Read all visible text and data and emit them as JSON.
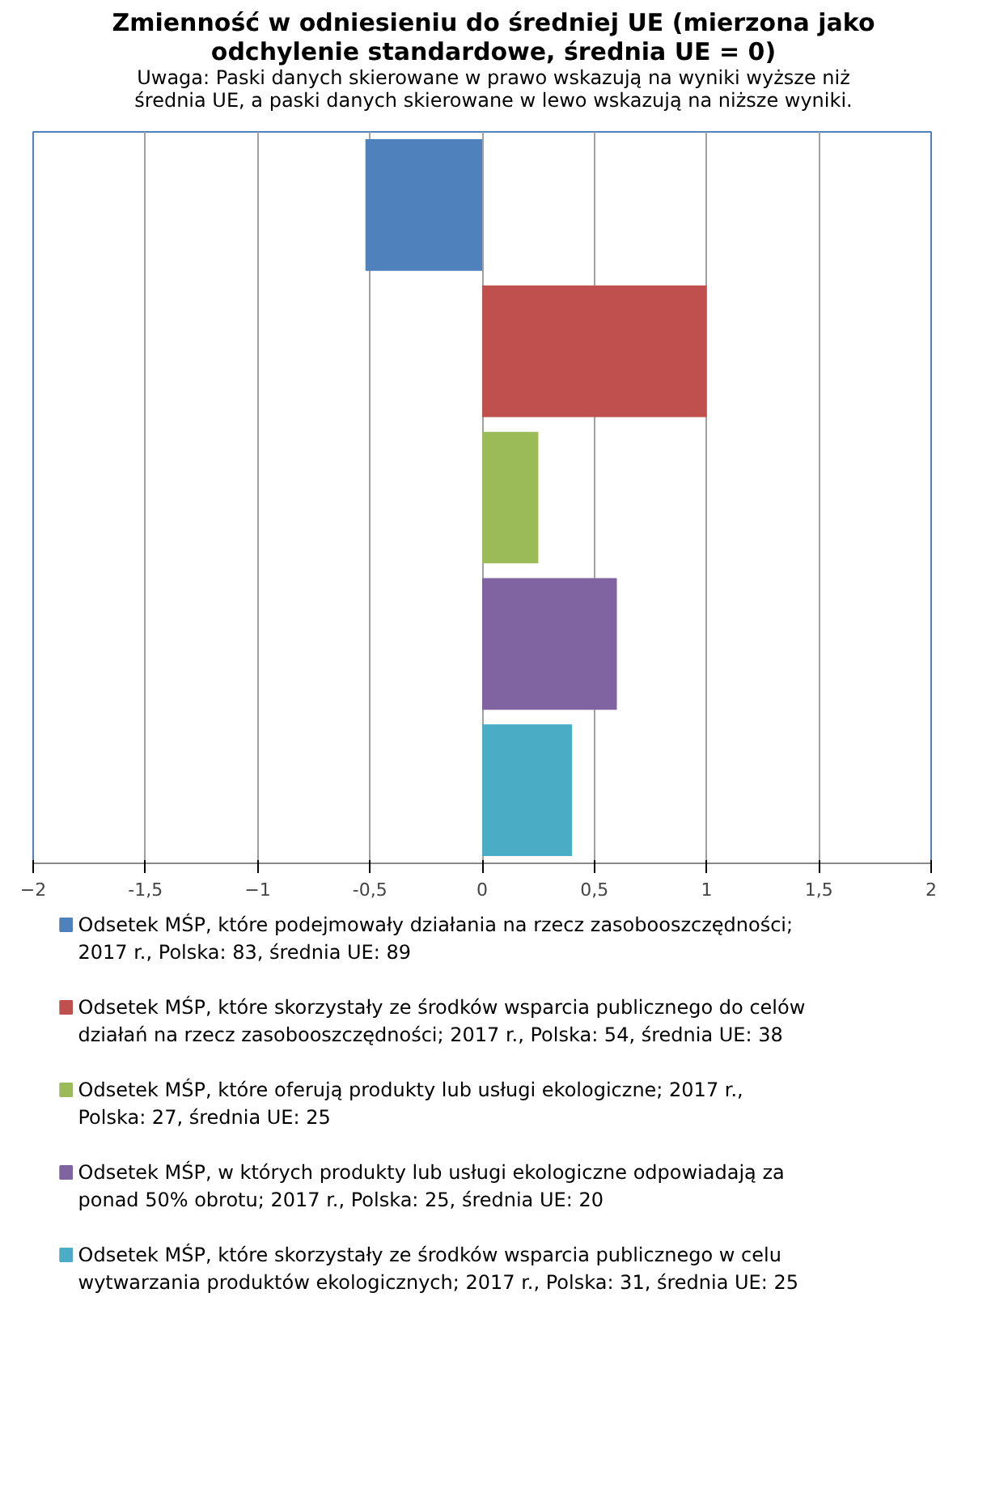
{
  "chart_data": {
    "type": "bar",
    "orientation": "horizontal",
    "title": "Zmienność w odniesieniu do średniej UE (mierzona jako odchylenie standardowe, średnia UE = 0)",
    "subtitle": "Uwaga: Paski danych skierowane w prawo wskazują na wyniki wyższe niż średnia UE, a paski danych skierowane w lewo wskazują na niższe wyniki.",
    "categories": [
      null,
      null,
      null,
      null,
      null
    ],
    "series": [
      {
        "name": "Odsetek MŚP, które podejmowały działania na rzecz zasobooszczędności; 2017 r., Polska: 83, średnia UE: 89",
        "color": "#4f81bd",
        "values": [
          -0.52,
          null,
          null,
          null,
          null
        ]
      },
      {
        "name": "Odsetek MŚP, które skorzystały ze środków wsparcia publicznego do celów działań na rzecz zasobooszczędności; 2017 r., Polska: 54, średnia UE: 38",
        "color": "#c0504d",
        "values": [
          null,
          1.0,
          null,
          null,
          null
        ]
      },
      {
        "name": "Odsetek MŚP, które oferują produkty lub usługi ekologiczne; 2017 r., Polska: 27, średnia UE: 25",
        "color": "#9bbb59",
        "values": [
          null,
          null,
          0.25,
          null,
          null
        ]
      },
      {
        "name": "Odsetek MŚP, w których produkty lub usługi ekologiczne odpowiadają za ponad 50% obrotu; 2017 r., Polska: 25, średnia UE: 20",
        "color": "#8064a2",
        "values": [
          null,
          null,
          null,
          0.6,
          null
        ]
      },
      {
        "name": "Odsetek MŚP, które skorzystały ze środków wsparcia publicznego w celu wytwarzania produktów ekologicznych; 2017 r., Polska: 31, średnia UE: 25",
        "color": "#4bacc6",
        "values": [
          null,
          null,
          null,
          null,
          0.4
        ]
      }
    ],
    "xlim": [
      -2,
      2
    ],
    "xticks": [
      -2,
      {
        "value": -1.5,
        "label": "-1,5"
      },
      -1,
      {
        "value": -0.5,
        "label": "-0,5"
      },
      0,
      {
        "value": 0.5,
        "label": "0,5"
      },
      1,
      {
        "value": 1.5,
        "label": "1,5"
      },
      2
    ],
    "tick_labels": "x",
    "grid": "x",
    "legend": "bottom"
  }
}
